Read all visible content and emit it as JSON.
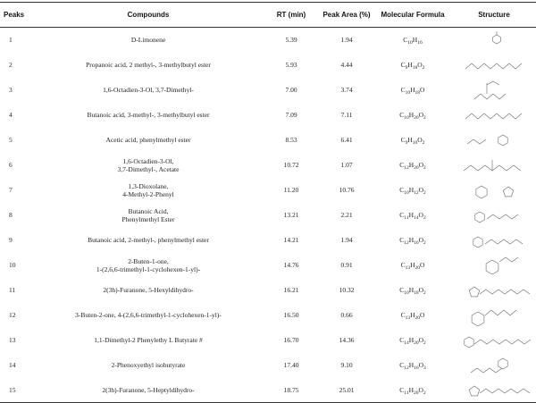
{
  "headers": {
    "peaks": "Peaks",
    "compounds": "Compounds",
    "rt": "RT (min)",
    "area": "Peak Area (%)",
    "formula": "Molecular Formula",
    "structure": "Structure"
  },
  "rows": [
    {
      "peak": "1",
      "compound": "D-Limonene",
      "rt": "5.39",
      "area": "1.94",
      "formula": [
        [
          "C",
          "10"
        ],
        [
          "H",
          "16"
        ]
      ],
      "structure_icon": "limonene-structure"
    },
    {
      "peak": "2",
      "compound": "Propanoic acid, 2 methyl-, 3-methylbutyl ester",
      "rt": "5.93",
      "area": "4.44",
      "formula": [
        [
          "C",
          "9"
        ],
        [
          "H",
          "18"
        ],
        [
          "O",
          "2"
        ]
      ],
      "structure_icon": "ester-structure"
    },
    {
      "peak": "3",
      "compound": "1,6-Octadien-3-Ol, 3,7-Dimethyl-",
      "rt": "7.00",
      "area": "3.74",
      "formula": [
        [
          "C",
          "10"
        ],
        [
          "H",
          "18"
        ],
        [
          "O",
          ""
        ]
      ],
      "structure_icon": "linalool-structure"
    },
    {
      "peak": "4",
      "compound": "Butanoic acid, 3-methyl-, 3-methylbutyl ester",
      "rt": "7.09",
      "area": "7.11",
      "formula": [
        [
          "C",
          "10"
        ],
        [
          "H",
          "20"
        ],
        [
          "O",
          "2"
        ]
      ],
      "structure_icon": "ester-structure"
    },
    {
      "peak": "5",
      "compound": "Acetic acid, phenylmethyl ester",
      "rt": "8.53",
      "area": "6.41",
      "formula": [
        [
          "C",
          "9"
        ],
        [
          "H",
          "10"
        ],
        [
          "O",
          "2"
        ]
      ],
      "structure_icon": "benzyl-acetate-structure"
    },
    {
      "peak": "6",
      "compound_lines": [
        "1,6-Octadien-3-Ol,",
        "3,7-Dimethyl-, Acetate"
      ],
      "rt": "10.72",
      "area": "1.07",
      "formula": [
        [
          "C",
          "12"
        ],
        [
          "H",
          "20"
        ],
        [
          "O",
          "2"
        ]
      ],
      "structure_icon": "linalyl-acetate-structure"
    },
    {
      "peak": "7",
      "compound_lines": [
        "1,3-Dioxolane,",
        "4-Methyl-2-Phenyl"
      ],
      "rt": "11.20",
      "area": "10.76",
      "formula": [
        [
          "C",
          "10"
        ],
        [
          "H",
          "12"
        ],
        [
          "O",
          "2"
        ]
      ],
      "structure_icon": "dioxolane-structure"
    },
    {
      "peak": "8",
      "compound_lines": [
        "Butanoic Acid,",
        "Phenylmethyl Ester"
      ],
      "rt": "13.21",
      "area": "2.21",
      "formula": [
        [
          "C",
          "11"
        ],
        [
          "H",
          "14"
        ],
        [
          "O",
          "2"
        ]
      ],
      "structure_icon": "benzyl-butyrate-structure"
    },
    {
      "peak": "9",
      "compound": "Butanoic acid, 2-methyl-, phenylmethyl ester",
      "rt": "14.21",
      "area": "1.94",
      "formula": [
        [
          "C",
          "12"
        ],
        [
          "H",
          "16"
        ],
        [
          "O",
          "2"
        ]
      ],
      "structure_icon": "benzyl-ester-structure"
    },
    {
      "peak": "10",
      "compound_lines": [
        "2-Buten-1-one,",
        "1-(2,6,6-trimethyl-1-cyclohexen-1-yl)-"
      ],
      "rt": "14.76",
      "area": "0.91",
      "formula": [
        [
          "C",
          "13"
        ],
        [
          "H",
          "20"
        ],
        [
          "O",
          ""
        ]
      ],
      "structure_icon": "damascone-structure"
    },
    {
      "peak": "11",
      "compound": "2(3h)-Furanone, 5-Hexyldihydro-",
      "rt": "16.21",
      "area": "10.32",
      "formula": [
        [
          "C",
          "10"
        ],
        [
          "H",
          "18"
        ],
        [
          "O",
          "2"
        ]
      ],
      "structure_icon": "lactone-structure"
    },
    {
      "peak": "12",
      "compound": "3-Buten-2-one, 4-(2,6,6-trimethyl-1-cyclohexen-1-yl)-",
      "rt": "16.50",
      "area": "0.66",
      "formula": [
        [
          "C",
          "13"
        ],
        [
          "H",
          "20"
        ],
        [
          "O",
          ""
        ]
      ],
      "structure_icon": "ionone-structure"
    },
    {
      "peak": "13",
      "compound": "1,1-Dimethyl-2 Phenylethy L Butyrate #",
      "rt": "16.70",
      "area": "14.36",
      "formula": [
        [
          "C",
          "14"
        ],
        [
          "H",
          "20"
        ],
        [
          "O",
          "2"
        ]
      ],
      "structure_icon": "phenylethyl-butyrate-structure"
    },
    {
      "peak": "14",
      "compound": "2-Phenoxyethyl isobutyrate",
      "rt": "17.40",
      "area": "9.10",
      "formula": [
        [
          "C",
          "12"
        ],
        [
          "H",
          "16"
        ],
        [
          "O",
          "3"
        ]
      ],
      "structure_icon": "phenoxyethyl-structure"
    },
    {
      "peak": "15",
      "compound": "2(3h)-Furanone, 5-Heptyldihydro-",
      "rt": "18.75",
      "area": "25.01",
      "formula": [
        [
          "C",
          "11"
        ],
        [
          "H",
          "20"
        ],
        [
          "O",
          "2"
        ]
      ],
      "structure_icon": "lactone-structure"
    }
  ]
}
